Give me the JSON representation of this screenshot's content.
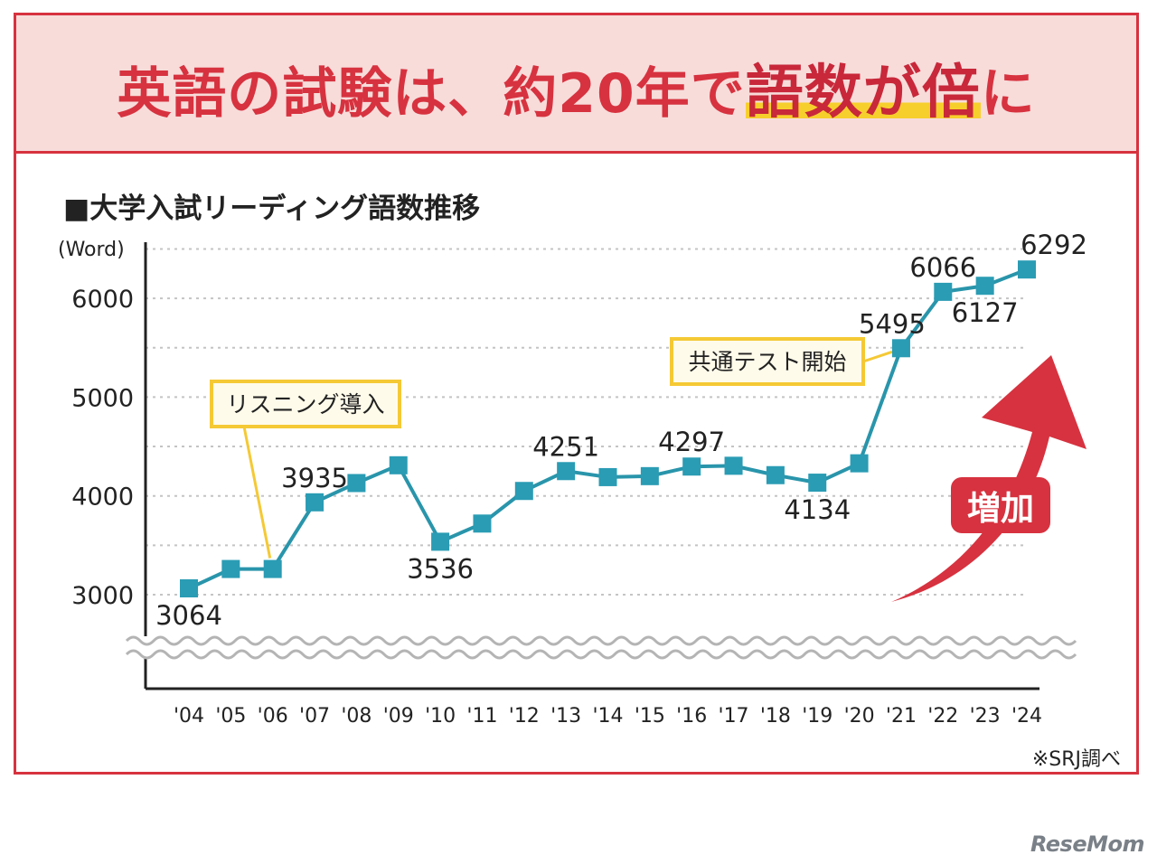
{
  "headline": {
    "prefix": "英語の試験は、約20年で",
    "highlight": "語数が倍",
    "suffix": "に"
  },
  "chart_title": "■大学入試リーディング語数推移",
  "source_note": "※SRJ調べ",
  "site_logo": "ReseMom",
  "colors": {
    "accent": "#d7323f",
    "header_bg": "#f7dcda",
    "line": "#2995ab",
    "marker": "#2a9cb4",
    "highlight": "#f7cf2c",
    "callout_border": "#f5c935",
    "callout_bg": "#fffbea",
    "arrow": "#d7323f"
  },
  "chart_data": {
    "type": "line",
    "title": "大学入試リーディング語数推移",
    "xlabel": "",
    "ylabel": "(Word)",
    "ylim": [
      3000,
      6500
    ],
    "yticks": [
      3000,
      4000,
      5000,
      6000
    ],
    "ytick_labels": [
      "3000",
      "4000",
      "5000",
      "6000"
    ],
    "grid": "dotted horizontal every 500",
    "categories": [
      "'04",
      "'05",
      "'06",
      "'07",
      "'08",
      "'09",
      "'10",
      "'11",
      "'12",
      "'13",
      "'14",
      "'15",
      "'16",
      "'17",
      "'18",
      "'19",
      "'20",
      "'21",
      "'22",
      "'23",
      "'24"
    ],
    "series": [
      {
        "name": "語数",
        "values": [
          3064,
          3260,
          3260,
          3935,
          4130,
          4310,
          3536,
          3720,
          4050,
          4251,
          4190,
          4200,
          4297,
          4305,
          4210,
          4134,
          4330,
          5495,
          6066,
          6127,
          6292
        ]
      }
    ],
    "data_labels": [
      {
        "index": 0,
        "text": "3064",
        "pos": "below"
      },
      {
        "index": 3,
        "text": "3935",
        "pos": "above"
      },
      {
        "index": 6,
        "text": "3536",
        "pos": "below"
      },
      {
        "index": 9,
        "text": "4251",
        "pos": "above"
      },
      {
        "index": 12,
        "text": "4297",
        "pos": "above"
      },
      {
        "index": 15,
        "text": "4134",
        "pos": "below"
      },
      {
        "index": 17,
        "text": "5495",
        "pos": "above"
      },
      {
        "index": 18,
        "text": "6066",
        "pos": "above"
      },
      {
        "index": 19,
        "text": "6127",
        "pos": "below"
      },
      {
        "index": 20,
        "text": "6292",
        "pos": "above"
      }
    ],
    "annotations": [
      {
        "text": "リスニング導入",
        "target_index": 2
      },
      {
        "text": "共通テスト開始",
        "target_index": 17
      },
      {
        "text": "増加",
        "kind": "arrow"
      }
    ]
  }
}
